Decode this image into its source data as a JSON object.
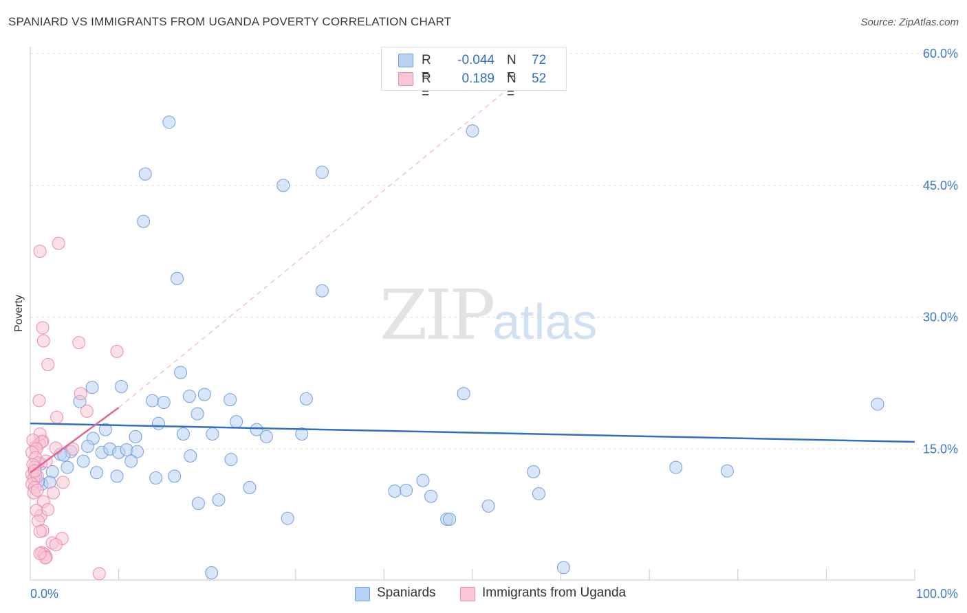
{
  "title": "SPANIARD VS IMMIGRANTS FROM UGANDA POVERTY CORRELATION CHART",
  "source": "Source: ZipAtlas.com",
  "watermark": {
    "zip": "ZIP",
    "atlas": "atlas"
  },
  "colors": {
    "blue_fill": "#b9d1f2",
    "blue_stroke": "#6e9ee0",
    "blue_line": "#2f6fc4",
    "pink_fill": "#f8c6d6",
    "pink_stroke": "#ea8aab",
    "pink_line": "#e4648f",
    "grid": "#dcdcdc",
    "tick": "#3b78c6"
  },
  "stats": [
    {
      "r_label": "R =",
      "r_value": "-0.044",
      "n_label": "N =",
      "n_value": "72",
      "series": "blue"
    },
    {
      "r_label": "R =",
      "r_value": "0.189",
      "n_label": "N =",
      "n_value": "52",
      "series": "pink"
    }
  ],
  "legend": [
    {
      "label": "Spaniards",
      "series": "blue"
    },
    {
      "label": "Immigrants from Uganda",
      "series": "pink"
    }
  ],
  "chart_data": {
    "type": "scatter",
    "title": "SPANIARD VS IMMIGRANTS FROM UGANDA POVERTY CORRELATION CHART",
    "xlabel": "",
    "ylabel": "Poverty",
    "xlim": [
      0,
      100
    ],
    "ylim": [
      0,
      60
    ],
    "y_ticks": [
      15,
      30,
      45,
      60
    ],
    "y_tick_labels": [
      "15.0%",
      "30.0%",
      "45.0%",
      "60.0%"
    ],
    "x_tick_labels": [
      "0.0%",
      "100.0%"
    ],
    "grid": true,
    "series": [
      {
        "name": "Spaniards",
        "color": "blue",
        "trend": {
          "x0": 0,
          "y0": 17.9,
          "x1": 100,
          "y1": 15.8
        },
        "points": [
          [
            15.7,
            52.2
          ],
          [
            13.0,
            46.3
          ],
          [
            28.6,
            45.0
          ],
          [
            33.0,
            46.5
          ],
          [
            50.0,
            51.2
          ],
          [
            12.8,
            40.9
          ],
          [
            16.6,
            34.4
          ],
          [
            33.0,
            33.0
          ],
          [
            17.0,
            23.7
          ],
          [
            7.0,
            22.0
          ],
          [
            10.3,
            22.1
          ],
          [
            5.6,
            20.4
          ],
          [
            13.8,
            20.5
          ],
          [
            15.1,
            20.3
          ],
          [
            18.0,
            21.0
          ],
          [
            19.7,
            21.2
          ],
          [
            22.6,
            20.6
          ],
          [
            31.2,
            20.7
          ],
          [
            49.0,
            21.3
          ],
          [
            95.8,
            20.1
          ],
          [
            18.9,
            19.0
          ],
          [
            14.5,
            17.9
          ],
          [
            23.3,
            18.1
          ],
          [
            8.5,
            17.2
          ],
          [
            17.3,
            16.7
          ],
          [
            20.6,
            16.7
          ],
          [
            25.6,
            17.2
          ],
          [
            26.7,
            16.4
          ],
          [
            30.7,
            16.7
          ],
          [
            7.1,
            16.2
          ],
          [
            11.9,
            16.4
          ],
          [
            6.5,
            15.3
          ],
          [
            4.6,
            14.7
          ],
          [
            3.4,
            14.4
          ],
          [
            8.1,
            14.6
          ],
          [
            9.0,
            15.0
          ],
          [
            10.0,
            14.6
          ],
          [
            10.9,
            14.9
          ],
          [
            12.1,
            14.7
          ],
          [
            3.8,
            14.3
          ],
          [
            11.4,
            13.6
          ],
          [
            6.0,
            13.6
          ],
          [
            22.7,
            13.8
          ],
          [
            18.1,
            14.2
          ],
          [
            1.2,
            13.3
          ],
          [
            4.2,
            12.9
          ],
          [
            2.5,
            12.4
          ],
          [
            7.5,
            12.3
          ],
          [
            9.8,
            11.9
          ],
          [
            14.2,
            11.7
          ],
          [
            16.3,
            11.9
          ],
          [
            1.3,
            11.0
          ],
          [
            2.2,
            11.2
          ],
          [
            44.4,
            11.4
          ],
          [
            73.0,
            12.9
          ],
          [
            78.8,
            12.5
          ],
          [
            56.9,
            12.4
          ],
          [
            24.8,
            10.6
          ],
          [
            41.2,
            10.2
          ],
          [
            42.5,
            10.3
          ],
          [
            45.3,
            9.6
          ],
          [
            57.5,
            9.9
          ],
          [
            19.0,
            8.8
          ],
          [
            21.3,
            9.2
          ],
          [
            51.8,
            8.5
          ],
          [
            29.1,
            7.1
          ],
          [
            47.1,
            7.0
          ],
          [
            47.4,
            7.0
          ],
          [
            20.5,
            0.9
          ],
          [
            60.3,
            1.5
          ],
          [
            0.6,
            12.0
          ],
          [
            0.9,
            11.3
          ]
        ]
      },
      {
        "name": "Immigrants from Uganda",
        "color": "pink",
        "trend": {
          "x0": 0,
          "y0": 12.3,
          "x1": 10,
          "y1": 19.7,
          "dash_to_x": 55,
          "dash_to_y": 56.8
        },
        "points": [
          [
            3.2,
            38.4
          ],
          [
            1.1,
            37.5
          ],
          [
            1.4,
            28.8
          ],
          [
            1.5,
            27.3
          ],
          [
            5.5,
            27.1
          ],
          [
            9.8,
            26.1
          ],
          [
            2.0,
            24.6
          ],
          [
            5.7,
            21.3
          ],
          [
            1.0,
            20.5
          ],
          [
            6.4,
            19.3
          ],
          [
            3.0,
            18.6
          ],
          [
            1.4,
            15.9
          ],
          [
            1.0,
            15.6
          ],
          [
            0.6,
            15.2
          ],
          [
            1.1,
            16.7
          ],
          [
            1.3,
            15.8
          ],
          [
            0.3,
            16.0
          ],
          [
            0.7,
            15.0
          ],
          [
            2.9,
            15.1
          ],
          [
            4.8,
            15.0
          ],
          [
            0.2,
            14.6
          ],
          [
            0.6,
            14.0
          ],
          [
            0.9,
            13.4
          ],
          [
            1.8,
            13.6
          ],
          [
            0.5,
            12.9
          ],
          [
            0.2,
            12.1
          ],
          [
            0.4,
            11.6
          ],
          [
            0.8,
            11.9
          ],
          [
            0.2,
            11.0
          ],
          [
            0.5,
            10.6
          ],
          [
            0.4,
            10.0
          ],
          [
            2.6,
            10.0
          ],
          [
            3.7,
            11.2
          ],
          [
            0.8,
            10.3
          ],
          [
            1.5,
            9.0
          ],
          [
            1.2,
            7.4
          ],
          [
            0.7,
            8.0
          ],
          [
            2.0,
            8.1
          ],
          [
            0.9,
            6.8
          ],
          [
            1.4,
            5.7
          ],
          [
            1.1,
            5.6
          ],
          [
            3.6,
            4.8
          ],
          [
            2.5,
            4.3
          ],
          [
            2.9,
            4.1
          ],
          [
            1.3,
            3.2
          ],
          [
            1.6,
            3.0
          ],
          [
            1.8,
            2.7
          ],
          [
            1.7,
            2.6
          ],
          [
            1.1,
            3.1
          ],
          [
            7.8,
            0.8
          ],
          [
            0.3,
            13.2
          ],
          [
            0.5,
            12.5
          ]
        ]
      }
    ]
  }
}
